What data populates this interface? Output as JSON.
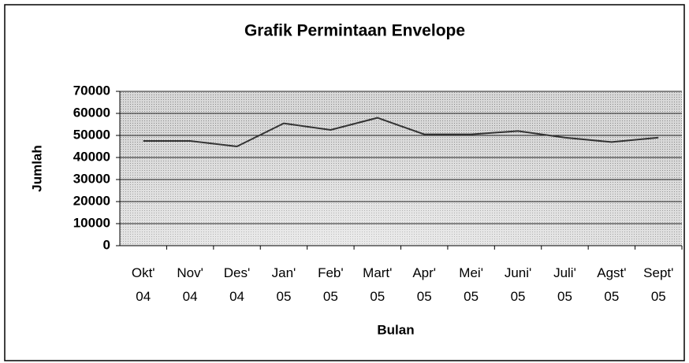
{
  "chart_data": {
    "type": "line",
    "title": "Grafik Permintaan Envelope",
    "x_label": "Bulan",
    "y_label": "Jumlah",
    "categories": [
      "Okt'\n04",
      "Nov'\n04",
      "Des'\n04",
      "Jan'\n05",
      "Feb'\n05",
      "Mart'\n05",
      "Apr'\n05",
      "Mei'\n05",
      "Juni'\n05",
      "Juli'\n05",
      "Agst'\n05",
      "Sept'\n05"
    ],
    "values": [
      47500,
      47500,
      45000,
      55500,
      52500,
      58000,
      50500,
      50500,
      52000,
      49000,
      47000,
      49000
    ],
    "color": "#333333",
    "ylim": [
      0,
      70000
    ],
    "yticks": [
      0,
      10000,
      20000,
      30000,
      40000,
      50000,
      60000,
      70000
    ],
    "grid": true
  }
}
